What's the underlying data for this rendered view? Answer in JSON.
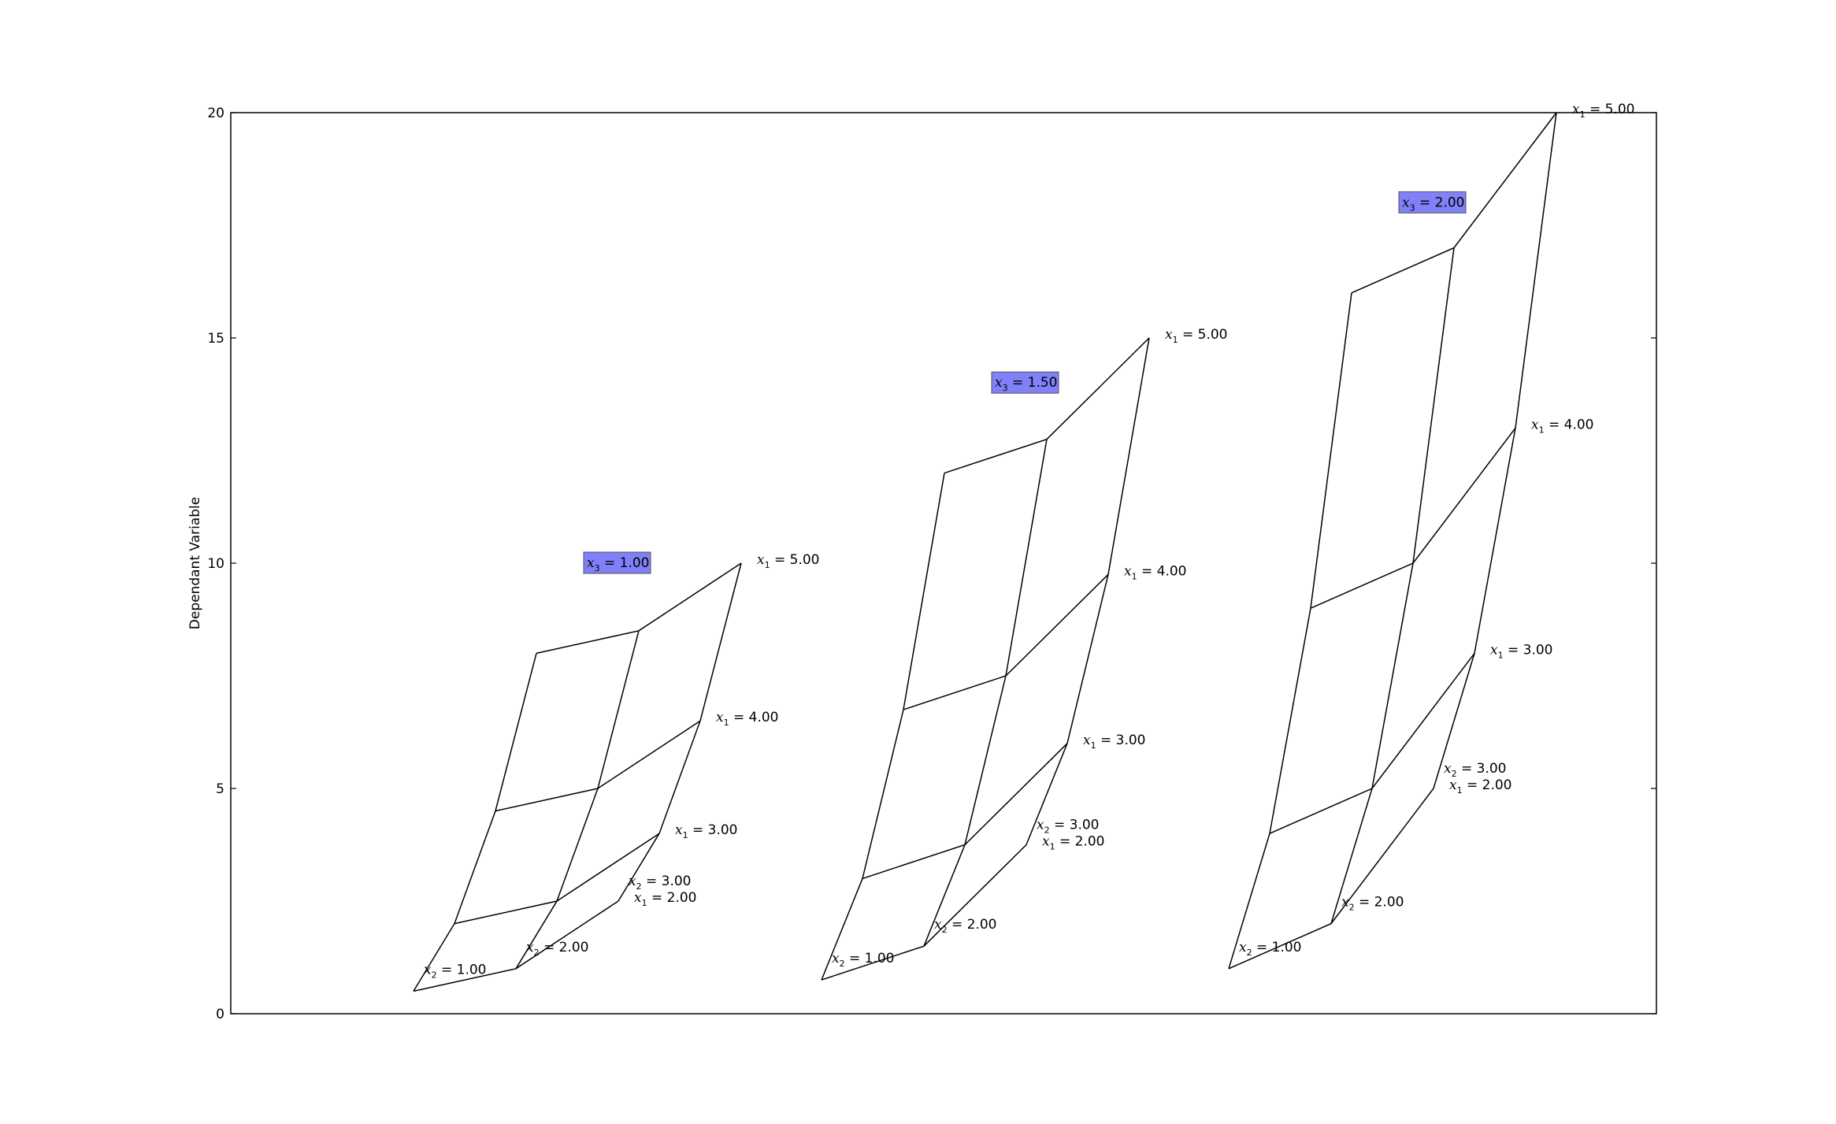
{
  "chart_data": {
    "type": "line",
    "ylabel": "Dependant Variable",
    "xlabel": "",
    "ylim": [
      0,
      20
    ],
    "yticks": [
      0,
      5,
      10,
      15,
      20
    ],
    "xticks": [],
    "grid": false,
    "x1_levels": [
      2,
      3,
      4,
      5
    ],
    "x2_levels": [
      1,
      2,
      3
    ],
    "x1_label_format": "x1 = {v}",
    "x2_label_format": "x2 = {v}",
    "x3_label_format": "x3 = {v}",
    "x3_highlight_color": "#8080f8",
    "line_color": "#000000",
    "panels": [
      {
        "x3": "1.00",
        "x3_label_value": 10,
        "x2_1": [
          0.5,
          2.0,
          4.5,
          8.0
        ],
        "x2_2": [
          1.0,
          2.5,
          5.0,
          8.5
        ],
        "x2_3": [
          2.5,
          4.0,
          6.5,
          10.0
        ],
        "x1_labels": [
          "2.00",
          "3.00",
          "4.00",
          "5.00"
        ],
        "x2_labels": [
          "1.00",
          "2.00",
          "3.00"
        ]
      },
      {
        "x3": "1.50",
        "x3_label_value": 14,
        "x2_1": [
          0.75,
          3.0,
          6.75,
          12.0
        ],
        "x2_2": [
          1.5,
          3.75,
          7.5,
          12.75
        ],
        "x2_3": [
          3.75,
          6.0,
          9.75,
          15.0
        ],
        "x1_labels": [
          "2.00",
          "3.00",
          "4.00",
          "5.00"
        ],
        "x2_labels": [
          "1.00",
          "2.00",
          "3.00"
        ]
      },
      {
        "x3": "2.00",
        "x3_label_value": 18,
        "x2_1": [
          1.0,
          4.0,
          9.0,
          16.0
        ],
        "x2_2": [
          2.0,
          5.0,
          10.0,
          17.0
        ],
        "x2_3": [
          5.0,
          8.0,
          13.0,
          20.0
        ],
        "x1_labels": [
          "2.00",
          "3.00",
          "4.00",
          "5.00"
        ],
        "x2_labels": [
          "1.00",
          "2.00",
          "3.00"
        ]
      }
    ]
  }
}
